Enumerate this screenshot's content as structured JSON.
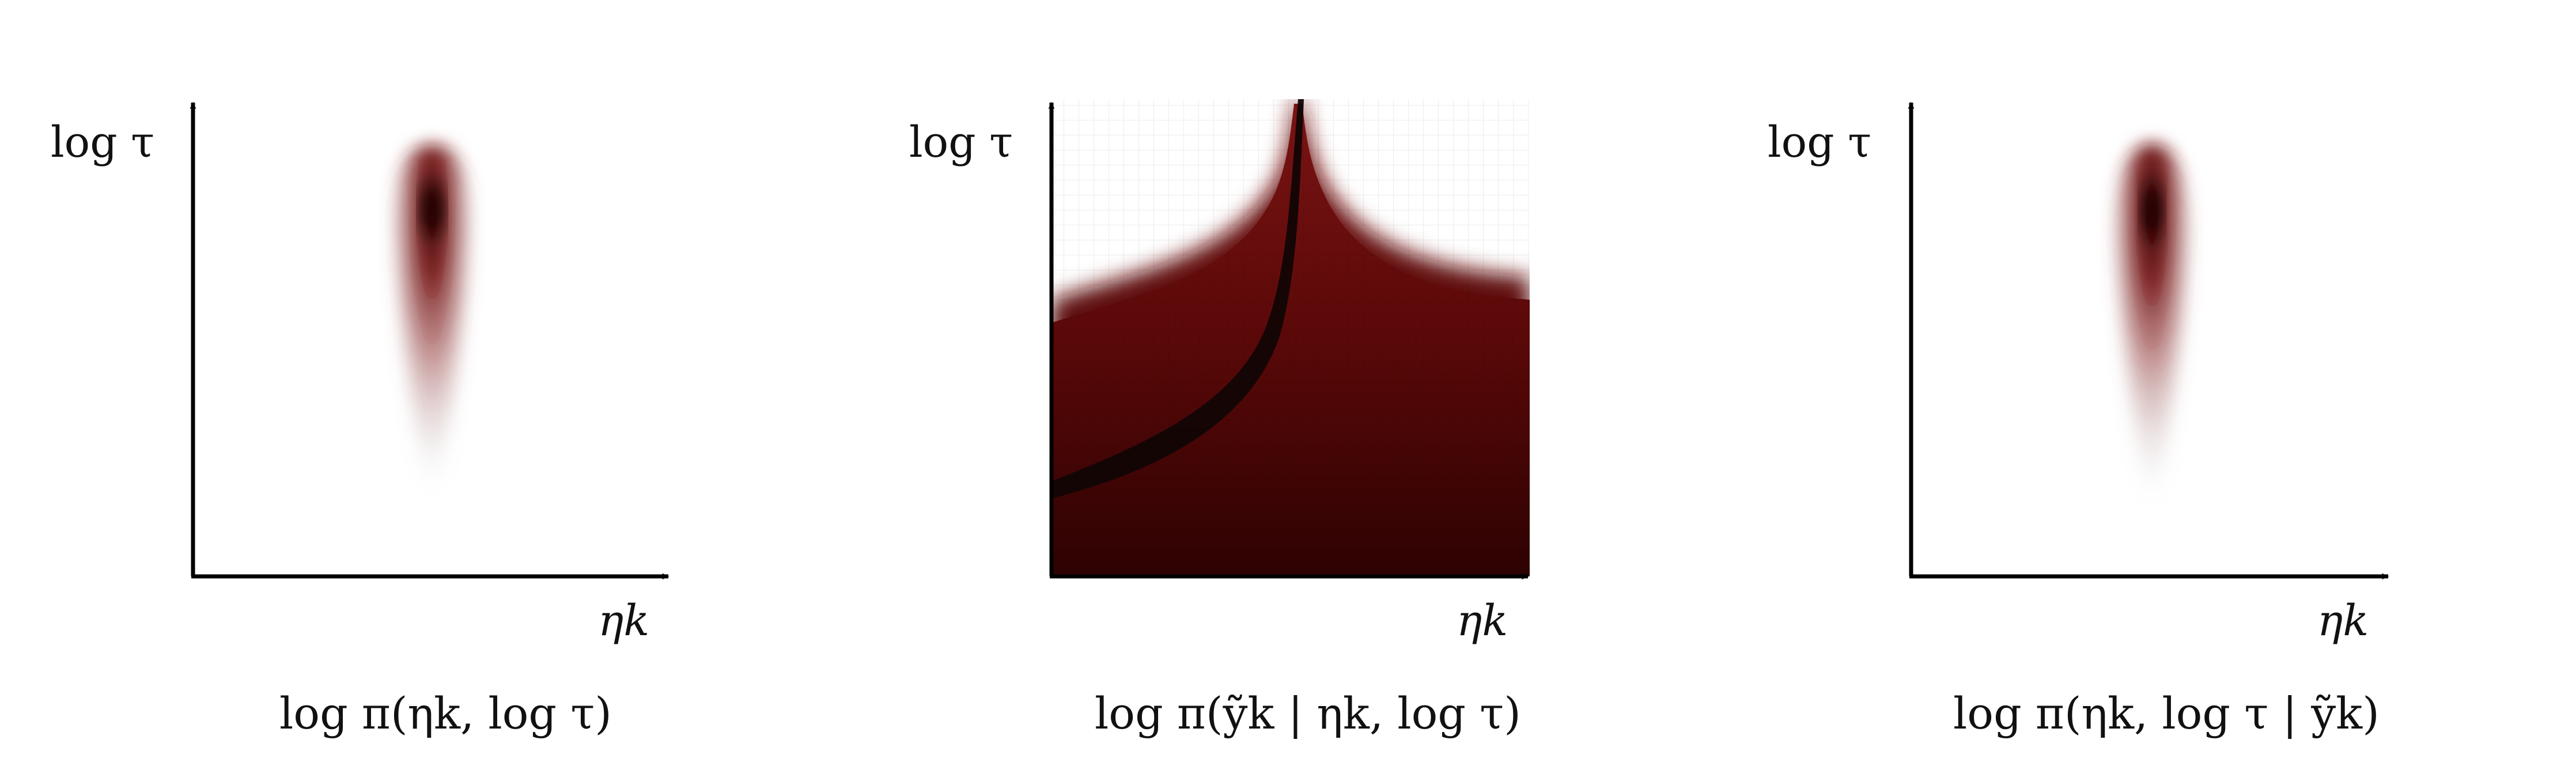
{
  "panels": [
    {
      "id": "prior",
      "ylabel": "log τ",
      "xlabel": "ηk",
      "caption": "log π(ηk, log τ)"
    },
    {
      "id": "likelihood",
      "ylabel": "log τ",
      "xlabel": "ηk",
      "caption": "log π(ỹk | ηk, log τ)"
    },
    {
      "id": "posterior",
      "ylabel": "log τ",
      "xlabel": "ηk",
      "caption": "log π(ηk, log τ | ỹk)"
    }
  ],
  "colors": {
    "density": "#6b0a0a",
    "peak": "#1a0000",
    "axis": "#000000",
    "ridge": "#120505"
  }
}
